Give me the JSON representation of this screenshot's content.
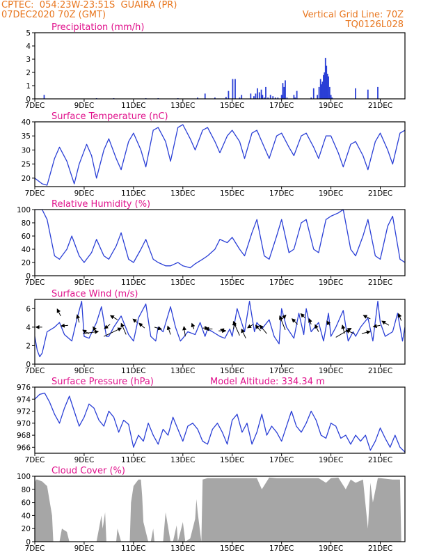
{
  "header": {
    "station": "CPTEC:  054:23W-23:51S  GUAIRA (PR)",
    "run": "07DEC2020 70Z (GMT)",
    "grid_line": "Vertical Grid Line: 70Z",
    "code": "TQ0126L028"
  },
  "colors": {
    "header": "#e8761e",
    "title": "#e0128c",
    "line": "#2a3fd6",
    "bar": "#2a3fd6",
    "cloud": "#a6a6a6",
    "arrow": "#000000"
  },
  "x_tick_labels": [
    "7DEC",
    "9DEC",
    "11DEC",
    "13DEC",
    "15DEC",
    "17DEC",
    "19DEC",
    "21DEC"
  ],
  "x_tick_positions": [
    7,
    9,
    11,
    13,
    15,
    17,
    19,
    21
  ],
  "xlim": [
    7,
    22
  ],
  "chart_data": [
    {
      "id": "precip",
      "type": "bar",
      "title": "Precipitation (mm/h)",
      "ylim": [
        0,
        5
      ],
      "yticks": [
        0,
        1,
        2,
        3,
        4,
        5
      ],
      "x": [
        7.38,
        9.5,
        10.2,
        11.5,
        12.0,
        12.8,
        13.6,
        13.9,
        14.3,
        14.75,
        14.85,
        15.02,
        15.12,
        15.3,
        15.38,
        15.75,
        15.88,
        15.95,
        16.02,
        16.1,
        16.18,
        16.23,
        16.3,
        16.36,
        16.45,
        16.55,
        16.65,
        16.75,
        16.85,
        17.0,
        17.05,
        17.1,
        17.15,
        17.22,
        17.5,
        17.55,
        17.62,
        18.2,
        18.3,
        18.45,
        18.52,
        18.58,
        18.62,
        18.66,
        18.7,
        18.74,
        18.78,
        18.82,
        18.86,
        18.9,
        18.95,
        19.0,
        19.05,
        20.0,
        20.5,
        20.9
      ],
      "values": [
        0.3,
        0.05,
        0.05,
        0.05,
        0.05,
        0.05,
        0.1,
        0.4,
        0.1,
        0.15,
        0.6,
        1.5,
        1.5,
        0.1,
        0.3,
        0.4,
        0.2,
        0.4,
        0.8,
        0.5,
        0.7,
        0.3,
        0.1,
        0.9,
        0.1,
        0.3,
        0.2,
        0.1,
        0.1,
        0.3,
        1.2,
        0.9,
        1.4,
        0.1,
        0.3,
        0.1,
        0.6,
        0.1,
        0.8,
        0.3,
        0.9,
        1.5,
        1.1,
        1.3,
        1.8,
        2.0,
        3.1,
        2.5,
        1.9,
        1.7,
        0.9,
        0.3,
        0.1,
        0.8,
        0.7,
        0.9
      ]
    },
    {
      "id": "temp",
      "type": "line",
      "title": "Surface Temperature (nC)",
      "ylim": [
        17,
        40
      ],
      "yticks": [
        20,
        25,
        30,
        35,
        40
      ],
      "x": [
        7.0,
        7.3,
        7.5,
        7.8,
        8.0,
        8.3,
        8.6,
        8.8,
        9.1,
        9.3,
        9.5,
        9.8,
        10.0,
        10.3,
        10.5,
        10.8,
        11.0,
        11.3,
        11.5,
        11.8,
        12.0,
        12.3,
        12.5,
        12.8,
        13.0,
        13.3,
        13.5,
        13.8,
        14.0,
        14.3,
        14.5,
        14.8,
        15.0,
        15.3,
        15.5,
        15.8,
        16.0,
        16.3,
        16.5,
        16.8,
        17.0,
        17.3,
        17.5,
        17.8,
        18.0,
        18.3,
        18.5,
        18.8,
        19.0,
        19.3,
        19.5,
        19.8,
        20.0,
        20.3,
        20.5,
        20.8,
        21.0,
        21.3,
        21.5,
        21.8,
        22.0
      ],
      "values": [
        20,
        18,
        17.5,
        27,
        31,
        26,
        18,
        25,
        32,
        28,
        20,
        30,
        34,
        27,
        23,
        33,
        36,
        30,
        24,
        37,
        38,
        33,
        26,
        38,
        39,
        34,
        30,
        37,
        38,
        33,
        29,
        35,
        37,
        33,
        27,
        36,
        37,
        31,
        27,
        35,
        36,
        31,
        28,
        35,
        36,
        31,
        27,
        35,
        35,
        29,
        24,
        32,
        33,
        28,
        23,
        33,
        36,
        30,
        25,
        36,
        37
      ]
    },
    {
      "id": "rh",
      "type": "line",
      "title": "Relative Humidity (%)",
      "ylim": [
        0,
        100
      ],
      "yticks": [
        0,
        20,
        40,
        60,
        80,
        100
      ],
      "x": [
        7.0,
        7.3,
        7.5,
        7.8,
        8.0,
        8.3,
        8.5,
        8.8,
        9.0,
        9.3,
        9.5,
        9.8,
        10.0,
        10.3,
        10.5,
        10.8,
        11.0,
        11.3,
        11.5,
        11.8,
        12.0,
        12.3,
        12.5,
        12.8,
        13.0,
        13.3,
        13.5,
        13.8,
        14.0,
        14.3,
        14.5,
        14.8,
        15.0,
        15.3,
        15.5,
        15.8,
        16.0,
        16.3,
        16.5,
        16.8,
        17.0,
        17.3,
        17.5,
        17.8,
        18.0,
        18.3,
        18.5,
        18.8,
        19.0,
        19.3,
        19.5,
        19.8,
        20.0,
        20.3,
        20.5,
        20.8,
        21.0,
        21.3,
        21.5,
        21.8,
        22.0
      ],
      "values": [
        100,
        100,
        85,
        30,
        25,
        40,
        60,
        30,
        20,
        35,
        55,
        30,
        25,
        45,
        65,
        25,
        20,
        40,
        55,
        25,
        20,
        15,
        15,
        20,
        15,
        12,
        18,
        25,
        30,
        40,
        55,
        50,
        58,
        40,
        30,
        65,
        85,
        30,
        25,
        60,
        85,
        35,
        40,
        80,
        85,
        40,
        35,
        85,
        90,
        95,
        100,
        40,
        30,
        60,
        85,
        30,
        25,
        75,
        90,
        25,
        20
      ]
    },
    {
      "id": "wind",
      "type": "line",
      "title": "Surface Wind (m/s)",
      "ylim": [
        0,
        7
      ],
      "yticks": [
        0,
        2,
        4,
        6
      ],
      "x": [
        7.0,
        7.1,
        7.2,
        7.3,
        7.5,
        7.8,
        8.0,
        8.2,
        8.5,
        8.7,
        8.9,
        9.0,
        9.2,
        9.5,
        9.7,
        9.9,
        10.0,
        10.2,
        10.5,
        10.8,
        11.0,
        11.2,
        11.5,
        11.7,
        11.9,
        12.0,
        12.2,
        12.5,
        12.7,
        12.9,
        13.0,
        13.2,
        13.5,
        13.7,
        13.9,
        14.0,
        14.2,
        14.5,
        14.7,
        14.9,
        15.0,
        15.2,
        15.5,
        15.7,
        15.9,
        16.0,
        16.2,
        16.5,
        16.7,
        16.9,
        17.0,
        17.2,
        17.5,
        17.7,
        17.9,
        18.0,
        18.2,
        18.5,
        18.7,
        18.9,
        19.0,
        19.2,
        19.5,
        19.7,
        19.9,
        20.0,
        20.2,
        20.5,
        20.7,
        20.9,
        21.0,
        21.2,
        21.5,
        21.7,
        21.9,
        22.0
      ],
      "values": [
        3,
        1.5,
        0.8,
        1.2,
        3.5,
        4,
        4.5,
        3.2,
        2.5,
        4.8,
        6.8,
        3,
        2.8,
        4.5,
        6.2,
        3,
        3,
        4,
        5.2,
        3.2,
        2.5,
        5,
        6.5,
        3,
        2.5,
        4,
        3.5,
        6.2,
        4,
        2.5,
        2.8,
        3.5,
        3.2,
        4.5,
        3,
        3.8,
        3.5,
        3,
        2.8,
        3.8,
        3,
        6,
        3.5,
        6.8,
        3.5,
        4.5,
        3.8,
        4.8,
        3,
        2.2,
        6,
        4,
        2.8,
        5.5,
        3.2,
        6,
        3.5,
        4.5,
        2.5,
        5.5,
        3,
        4,
        5.8,
        2.5,
        3.5,
        3,
        4,
        5,
        2.5,
        6.8,
        4.5,
        3,
        3.5,
        5.5,
        2.5,
        4
      ],
      "arrows": [
        {
          "x": 7.3,
          "v": 4.0,
          "dx": -9,
          "dy": 0
        },
        {
          "x": 8.05,
          "v": 5.2,
          "dx": -5,
          "dy": -10
        },
        {
          "x": 8.35,
          "v": 4.2,
          "dx": -10,
          "dy": 1
        },
        {
          "x": 8.8,
          "v": 4.5,
          "dx": -3,
          "dy": -11
        },
        {
          "x": 8.95,
          "v": 3.3,
          "dx": 22,
          "dy": -3
        },
        {
          "x": 9.2,
          "v": 3.3,
          "dx": -9,
          "dy": -5
        },
        {
          "x": 9.5,
          "v": 3.5,
          "dx": -5,
          "dy": -7
        },
        {
          "x": 9.8,
          "v": 3.0,
          "dx": 25,
          "dy": -12
        },
        {
          "x": 10.05,
          "v": 4.3,
          "dx": -8,
          "dy": 6
        },
        {
          "x": 10.35,
          "v": 4.8,
          "dx": -10,
          "dy": -6
        },
        {
          "x": 10.7,
          "v": 3.2,
          "dx": -7,
          "dy": -16
        },
        {
          "x": 11.15,
          "v": 4.5,
          "dx": -6,
          "dy": -5
        },
        {
          "x": 11.45,
          "v": 3.9,
          "dx": -8,
          "dy": -7
        },
        {
          "x": 11.85,
          "v": 4.0,
          "dx": 10,
          "dy": 3
        },
        {
          "x": 12.5,
          "v": 3.2,
          "dx": -4,
          "dy": -12
        },
        {
          "x": 13.1,
          "v": 3.0,
          "dx": -2,
          "dy": -14
        },
        {
          "x": 13.45,
          "v": 3.8,
          "dx": -3,
          "dy": -8
        },
        {
          "x": 13.8,
          "v": 3.9,
          "dx": 8,
          "dy": 0
        },
        {
          "x": 14.2,
          "v": 3.8,
          "dx": -10,
          "dy": 0
        },
        {
          "x": 14.45,
          "v": 3.6,
          "dx": 10,
          "dy": 0
        },
        {
          "x": 14.75,
          "v": 3.6,
          "dx": -8,
          "dy": -2
        },
        {
          "x": 15.05,
          "v": 3.8,
          "dx": 2,
          "dy": -10
        },
        {
          "x": 15.3,
          "v": 3.1,
          "dx": -9,
          "dy": -20
        },
        {
          "x": 15.55,
          "v": 2.8,
          "dx": -6,
          "dy": -13
        },
        {
          "x": 15.85,
          "v": 4.3,
          "dx": -8,
          "dy": 5
        },
        {
          "x": 16.15,
          "v": 3.6,
          "dx": -7,
          "dy": -8
        },
        {
          "x": 16.4,
          "v": 3.3,
          "dx": -10,
          "dy": -12
        },
        {
          "x": 16.95,
          "v": 4.7,
          "dx": 8,
          "dy": -8
        },
        {
          "x": 17.15,
          "v": 3.7,
          "dx": -8,
          "dy": -20
        },
        {
          "x": 17.65,
          "v": 4.3,
          "dx": -8,
          "dy": -8
        },
        {
          "x": 17.95,
          "v": 5.0,
          "dx": -6,
          "dy": -6
        },
        {
          "x": 18.2,
          "v": 4.3,
          "dx": -3,
          "dy": -8
        },
        {
          "x": 18.5,
          "v": 3.5,
          "dx": -5,
          "dy": -10
        },
        {
          "x": 18.95,
          "v": 4.2,
          "dx": -4,
          "dy": -6
        },
        {
          "x": 19.2,
          "v": 2.9,
          "dx": 22,
          "dy": -13
        },
        {
          "x": 19.55,
          "v": 3.3,
          "dx": -3,
          "dy": -12
        },
        {
          "x": 19.95,
          "v": 3.3,
          "dx": -12,
          "dy": -5
        },
        {
          "x": 20.25,
          "v": 3.3,
          "dx": 12,
          "dy": -3
        },
        {
          "x": 20.6,
          "v": 4.9,
          "dx": -10,
          "dy": -5
        },
        {
          "x": 21.0,
          "v": 4.2,
          "dx": -10,
          "dy": 2
        },
        {
          "x": 21.35,
          "v": 4.2,
          "dx": -10,
          "dy": -6
        },
        {
          "x": 21.85,
          "v": 4.7,
          "dx": -4,
          "dy": -10
        }
      ]
    },
    {
      "id": "pres",
      "type": "line",
      "title": "Surface Pressure (hPa)",
      "extra_label": "Model Altitude: 334.34 m",
      "ylim": [
        965,
        976
      ],
      "yticks": [
        966,
        968,
        970,
        972,
        974,
        976
      ],
      "x": [
        7.0,
        7.2,
        7.4,
        7.6,
        7.8,
        8.0,
        8.2,
        8.4,
        8.6,
        8.8,
        9.0,
        9.2,
        9.4,
        9.6,
        9.8,
        10.0,
        10.2,
        10.4,
        10.6,
        10.8,
        11.0,
        11.2,
        11.4,
        11.6,
        11.8,
        12.0,
        12.2,
        12.4,
        12.6,
        12.8,
        13.0,
        13.2,
        13.4,
        13.6,
        13.8,
        14.0,
        14.2,
        14.4,
        14.6,
        14.8,
        15.0,
        15.2,
        15.4,
        15.6,
        15.8,
        16.0,
        16.2,
        16.4,
        16.6,
        16.8,
        17.0,
        17.2,
        17.4,
        17.6,
        17.8,
        18.0,
        18.2,
        18.4,
        18.6,
        18.8,
        19.0,
        19.2,
        19.4,
        19.6,
        19.8,
        20.0,
        20.2,
        20.4,
        20.6,
        20.8,
        21.0,
        21.2,
        21.4,
        21.6,
        21.8,
        22.0
      ],
      "values": [
        974,
        974.8,
        975,
        973.5,
        971.5,
        970,
        972.5,
        974.5,
        972,
        969.5,
        971,
        973.2,
        972.5,
        970.5,
        969.5,
        972,
        971,
        968.5,
        970.5,
        969.8,
        966,
        968,
        967,
        970,
        968,
        966.5,
        969,
        968,
        971,
        969,
        967,
        969.5,
        970,
        969,
        967,
        966.5,
        969,
        970,
        968.5,
        966.5,
        970.5,
        971.5,
        968.5,
        970,
        966.5,
        968.5,
        971.5,
        968,
        969.5,
        968.5,
        967,
        969.5,
        972,
        969.5,
        968.5,
        970,
        972,
        970.5,
        968,
        967.5,
        970,
        969.5,
        967.5,
        968,
        966.5,
        968,
        967,
        968,
        965.5,
        967,
        969.2,
        967.5,
        966,
        968,
        966,
        965.2
      ]
    },
    {
      "id": "cloud",
      "type": "area",
      "title": "Cloud Cover (%)",
      "ylim": [
        0,
        100
      ],
      "yticks": [
        0,
        20,
        40,
        60,
        80,
        100
      ],
      "x": [
        7.0,
        7.05,
        7.1,
        7.3,
        7.5,
        7.7,
        7.75,
        8.0,
        8.1,
        8.3,
        8.4,
        8.8,
        9.0,
        9.5,
        9.7,
        9.75,
        9.85,
        9.9,
        10.3,
        10.35,
        10.5,
        10.85,
        10.9,
        11.0,
        11.1,
        11.2,
        11.3,
        11.35,
        11.4,
        11.6,
        11.7,
        11.8,
        11.85,
        12.2,
        12.3,
        12.5,
        12.6,
        12.75,
        12.8,
        13.0,
        13.1,
        13.3,
        13.5,
        13.55,
        13.6,
        13.75,
        13.8,
        14.0,
        14.5,
        15.0,
        15.5,
        16.0,
        16.2,
        16.5,
        16.8,
        17.0,
        17.5,
        18.0,
        18.5,
        18.8,
        19.0,
        19.3,
        19.6,
        19.8,
        20.0,
        20.3,
        20.5,
        20.6,
        20.7,
        20.9,
        21.0,
        21.5,
        21.8,
        21.85,
        22.0
      ],
      "values": [
        90,
        95,
        95,
        92,
        85,
        40,
        0,
        0,
        20,
        15,
        0,
        0,
        0,
        0,
        40,
        20,
        45,
        0,
        0,
        20,
        0,
        0,
        60,
        85,
        90,
        95,
        95,
        70,
        30,
        0,
        0,
        20,
        0,
        0,
        45,
        0,
        0,
        25,
        0,
        30,
        0,
        5,
        35,
        65,
        45,
        0,
        95,
        97,
        97,
        97,
        97,
        97,
        80,
        98,
        97,
        97,
        97,
        97,
        97,
        90,
        97,
        98,
        80,
        95,
        90,
        95,
        20,
        90,
        60,
        97,
        97,
        95,
        95,
        0,
        0
      ]
    }
  ]
}
